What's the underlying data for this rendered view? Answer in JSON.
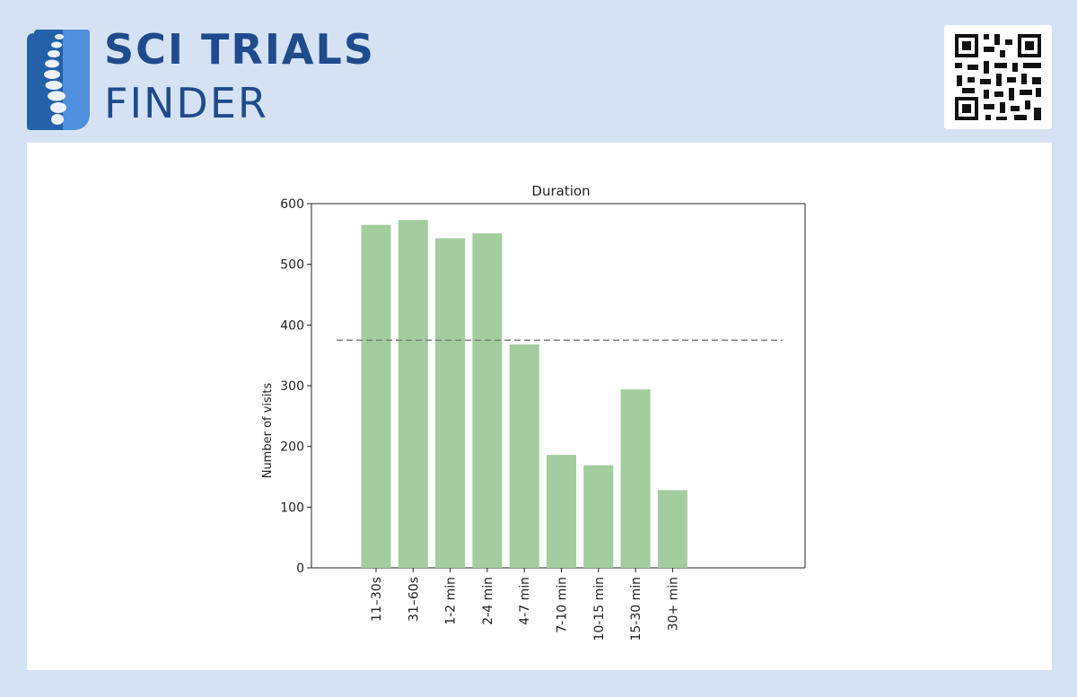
{
  "brand": {
    "line1": "SCI TRIALS",
    "line2": "FINDER",
    "color": "#1f4b8c"
  },
  "qr_code": {
    "icon": "qr-code-icon"
  },
  "colors": {
    "background": "#d5e2f3",
    "bar": "#a3cc9f",
    "reference_line": "#808080"
  },
  "chart_data": {
    "type": "bar",
    "title": "Duration",
    "xlabel": "",
    "ylabel": "Number of visits",
    "categories": [
      "11–30s",
      "31–60s",
      "1-2 min",
      "2-4 min",
      "4-7 min",
      "7-10 min",
      "10-15 min",
      "15-30 min",
      "30+ min"
    ],
    "values": [
      565,
      573,
      543,
      551,
      368,
      186,
      169,
      294,
      128
    ],
    "ylim": [
      0,
      600
    ],
    "yticks": [
      0,
      100,
      200,
      300,
      400,
      500,
      600
    ],
    "reference_line": {
      "y": 375,
      "style": "dashed"
    },
    "grid": false
  }
}
